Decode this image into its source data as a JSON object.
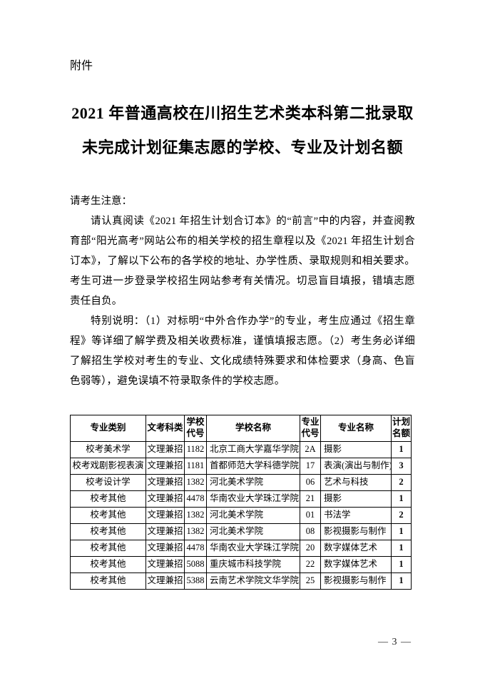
{
  "page": {
    "attachment_label": "附件",
    "title_line1": "2021 年普通高校在川招生艺术类本科第二批录取",
    "title_line2": "未完成计划征集志愿的学校、专业及计划名额",
    "notice_heading": "请考生注意：",
    "paragraph1": "请认真阅读《2021 年招生计划合订本》的“前言”中的内容，并查阅教育部“阳光高考”网站公布的相关学校的招生章程以及《2021 年招生计划合订本》，了解以下公布的各学校的地址、办学性质、录取规则和相关要求。考生可进一步登录学校招生网站参考有关情况。切忌盲目填报，错填志愿责任自负。",
    "paragraph2": "特别说明：（1）对标明“中外合作办学”的专业，考生应通过《招生章程》等详细了解学费及相关收费标准，谨慎填报志愿。（2）考生务必详细了解招生学校对考生的专业、文化成绩特殊要求和体检要求（身高、色盲色弱等），避免误填不符录取条件的学校志愿。",
    "page_number": "— 3 —"
  },
  "table": {
    "headers": [
      "专业类别",
      "文考科类",
      "学校代号",
      "学校名称",
      "专业代号",
      "专业名称",
      "计划名额"
    ],
    "rows": [
      [
        "校考美术学",
        "文理兼招",
        "1182",
        "北京工商大学嘉华学院",
        "2A",
        "摄影",
        "1"
      ],
      [
        "校考戏剧影视表演",
        "文理兼招",
        "1181",
        "首都师范大学科德学院",
        "17",
        "表演(演出与制作)",
        "3"
      ],
      [
        "校考设计学",
        "文理兼招",
        "1382",
        "河北美术学院",
        "06",
        "艺术与科技",
        "2"
      ],
      [
        "校考其他",
        "文理兼招",
        "4478",
        "华南农业大学珠江学院",
        "21",
        "摄影",
        "1"
      ],
      [
        "校考其他",
        "文理兼招",
        "1382",
        "河北美术学院",
        "01",
        "书法学",
        "2"
      ],
      [
        "校考其他",
        "文理兼招",
        "1382",
        "河北美术学院",
        "08",
        "影视摄影与制作",
        "1"
      ],
      [
        "校考其他",
        "文理兼招",
        "4478",
        "华南农业大学珠江学院",
        "20",
        "数字媒体艺术",
        "1"
      ],
      [
        "校考其他",
        "文理兼招",
        "5088",
        "重庆城市科技学院",
        "22",
        "数字媒体艺术",
        "1"
      ],
      [
        "校考其他",
        "文理兼招",
        "5388",
        "云南艺术学院文华学院",
        "25",
        "影视摄影与制作",
        "1"
      ]
    ]
  }
}
